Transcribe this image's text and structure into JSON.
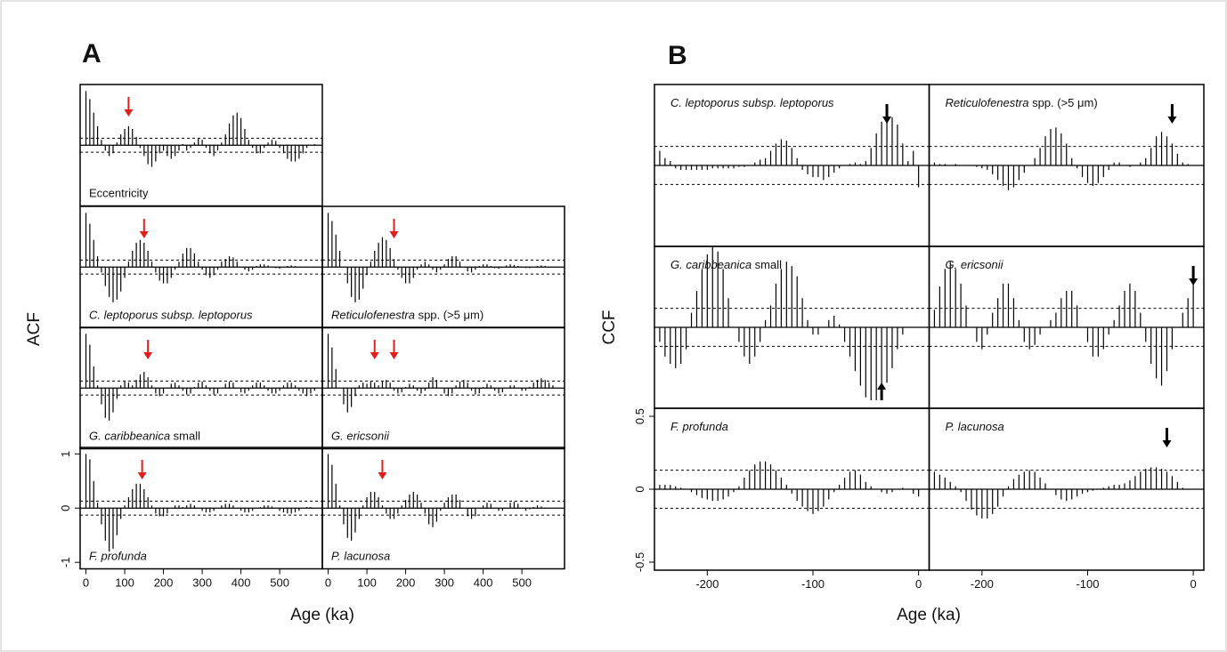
{
  "chart_data": [
    {
      "type": "acf",
      "panel_letter": "A",
      "ylabel": "ACF",
      "xlabel": "Age (ka)",
      "x": [
        0,
        10,
        20,
        30,
        40,
        50,
        60,
        70,
        80,
        90,
        100,
        110,
        120,
        130,
        140,
        150,
        160,
        170,
        180,
        190,
        200,
        210,
        220,
        230,
        240,
        250,
        260,
        270,
        280,
        290,
        300,
        310,
        320,
        330,
        340,
        350,
        360,
        370,
        380,
        390,
        400,
        410,
        420,
        430,
        440,
        450,
        460,
        470,
        480,
        490,
        500,
        510,
        520,
        530,
        540,
        550,
        560,
        570,
        580,
        590
      ],
      "xlim": [
        -15,
        610
      ],
      "xticks": [
        0,
        100,
        200,
        300,
        400,
        500
      ],
      "ylim": [
        -1.12,
        1.12
      ],
      "yticks": [
        -1,
        0,
        1
      ],
      "confidence_band": [
        -0.13,
        0.13
      ],
      "arrow_color": "#e0201b",
      "panels": [
        {
          "label": [
            {
              "text": "Eccentricity",
              "italic": false
            }
          ],
          "arrows": [
            110
          ],
          "values": [
            1,
            0.85,
            0.6,
            0.35,
            0.1,
            -0.1,
            -0.2,
            -0.15,
            0.05,
            0.2,
            0.3,
            0.35,
            0.3,
            0.15,
            -0.05,
            -0.2,
            -0.35,
            -0.4,
            -0.3,
            -0.15,
            -0.1,
            -0.2,
            -0.25,
            -0.2,
            -0.1,
            0.02,
            -0.1,
            -0.05,
            0.05,
            0.12,
            0.1,
            -0.05,
            -0.15,
            -0.2,
            -0.1,
            0.05,
            0.2,
            0.4,
            0.55,
            0.6,
            0.5,
            0.3,
            0.1,
            -0.05,
            -0.15,
            -0.15,
            -0.05,
            0.05,
            0.1,
            0.08,
            -0.05,
            -0.15,
            -0.25,
            -0.3,
            -0.3,
            -0.25,
            -0.15,
            -0.05,
            0,
            0.02
          ]
        },
        {
          "label": [
            {
              "text": "C. leptoporus subsp. leptoporus",
              "italic": true
            }
          ],
          "arrows": [
            150
          ],
          "values": [
            1,
            0.8,
            0.5,
            0.2,
            -0.1,
            -0.35,
            -0.55,
            -0.65,
            -0.6,
            -0.45,
            -0.2,
            0.1,
            0.3,
            0.45,
            0.5,
            0.45,
            0.3,
            0.1,
            -0.1,
            -0.25,
            -0.3,
            -0.3,
            -0.2,
            -0.05,
            0.1,
            0.25,
            0.35,
            0.35,
            0.25,
            0.1,
            -0.05,
            -0.15,
            -0.2,
            -0.15,
            -0.05,
            0.1,
            0.15,
            0.2,
            0.18,
            0.1,
            0,
            -0.05,
            -0.08,
            -0.05,
            0.02,
            0.05,
            0.05,
            0.03,
            0,
            -0.02,
            -0.03,
            0,
            0.02,
            0.03,
            0.02,
            0,
            0,
            -0.01,
            0,
            0
          ]
        },
        {
          "label": [
            {
              "text": "Reticulofenestra",
              "italic": true
            },
            {
              "text": " spp. (>5 μm)",
              "italic": false
            }
          ],
          "arrows": [
            170
          ],
          "values": [
            1,
            0.85,
            0.6,
            0.3,
            0,
            -0.3,
            -0.55,
            -0.65,
            -0.6,
            -0.4,
            -0.15,
            0.1,
            0.3,
            0.45,
            0.55,
            0.5,
            0.35,
            0.15,
            -0.05,
            -0.2,
            -0.3,
            -0.3,
            -0.2,
            -0.05,
            0.05,
            0.1,
            0.05,
            -0.05,
            -0.1,
            -0.05,
            0.05,
            0.15,
            0.2,
            0.2,
            0.1,
            0,
            -0.08,
            -0.1,
            -0.05,
            0.02,
            0.05,
            0.05,
            0.02,
            -0.02,
            -0.03,
            0,
            0.03,
            0.05,
            0.04,
            0.02,
            0,
            -0.02,
            -0.02,
            0,
            0.02,
            0.03,
            0.02,
            0,
            -0.01,
            0
          ]
        },
        {
          "label": [
            {
              "text": "G. caribbeanica",
              "italic": true
            },
            {
              "text": " small",
              "italic": false
            }
          ],
          "arrows": [
            160
          ],
          "values": [
            1,
            0.8,
            0.4,
            0.05,
            -0.3,
            -0.55,
            -0.6,
            -0.45,
            -0.2,
            0.05,
            0.12,
            0.1,
            0.05,
            0.15,
            0.25,
            0.3,
            0.2,
            0.05,
            -0.1,
            -0.15,
            -0.1,
            0,
            0.08,
            0.1,
            0.05,
            -0.05,
            -0.12,
            -0.1,
            0.02,
            0.1,
            0.12,
            0.05,
            -0.05,
            -0.12,
            -0.1,
            0,
            0.08,
            0.12,
            0.1,
            0,
            -0.08,
            -0.1,
            -0.05,
            0.05,
            0.1,
            0.1,
            0.05,
            -0.05,
            -0.1,
            -0.1,
            -0.05,
            0.05,
            0.1,
            0.1,
            0.05,
            -0.05,
            -0.1,
            -0.15,
            -0.1,
            -0.05
          ]
        },
        {
          "label": [
            {
              "text": "G. ericsonii",
              "italic": true
            }
          ],
          "arrows": [
            120,
            170
          ],
          "values": [
            1,
            0.75,
            0.35,
            0,
            -0.3,
            -0.45,
            -0.35,
            -0.15,
            0.05,
            0.1,
            0.08,
            0.12,
            0.1,
            0.05,
            0.12,
            0.15,
            0.1,
            -0.05,
            -0.1,
            -0.08,
            0.02,
            0.08,
            0.05,
            -0.05,
            -0.1,
            -0.05,
            0.1,
            0.2,
            0.15,
            0,
            -0.1,
            -0.15,
            -0.1,
            0.05,
            0.12,
            0.15,
            0.1,
            -0.05,
            -0.12,
            -0.1,
            0.02,
            0.08,
            0.05,
            -0.05,
            -0.1,
            -0.08,
            0,
            0.05,
            0.05,
            0,
            -0.05,
            -0.05,
            0.02,
            0.1,
            0.15,
            0.18,
            0.15,
            0.1,
            0.05,
            0
          ]
        },
        {
          "label": [
            {
              "text": "F. profunda",
              "italic": true
            }
          ],
          "arrows": [
            145
          ],
          "values": [
            1,
            0.9,
            0.5,
            0.1,
            -0.3,
            -0.6,
            -0.8,
            -0.75,
            -0.5,
            -0.2,
            0.05,
            0.2,
            0.35,
            0.45,
            0.45,
            0.35,
            0.2,
            0.05,
            -0.1,
            -0.15,
            -0.15,
            -0.1,
            0,
            0.05,
            0.05,
            0.02,
            0.05,
            0.08,
            0.05,
            0,
            -0.05,
            -0.08,
            -0.08,
            -0.05,
            0,
            0.05,
            0.08,
            0.08,
            0.05,
            0,
            -0.05,
            -0.08,
            -0.08,
            -0.05,
            0,
            0.02,
            0.05,
            0.05,
            0.03,
            0,
            -0.05,
            -0.08,
            -0.1,
            -0.1,
            -0.08,
            -0.05,
            0,
            0.02,
            0.02,
            0
          ]
        },
        {
          "label": [
            {
              "text": "P. lacunosa",
              "italic": true
            }
          ],
          "arrows": [
            140
          ],
          "values": [
            1,
            0.8,
            0.45,
            0.05,
            -0.3,
            -0.55,
            -0.6,
            -0.45,
            -0.2,
            0.05,
            0.2,
            0.3,
            0.3,
            0.2,
            0.05,
            -0.1,
            -0.2,
            -0.2,
            -0.1,
            0.05,
            0.15,
            0.25,
            0.3,
            0.25,
            0.1,
            -0.1,
            -0.3,
            -0.35,
            -0.25,
            -0.05,
            0.1,
            0.2,
            0.25,
            0.25,
            0.15,
            0,
            -0.15,
            -0.2,
            -0.15,
            0,
            0.05,
            0.1,
            0.08,
            0,
            -0.05,
            -0.05,
            0,
            0.1,
            0.12,
            0.08,
            0,
            -0.05,
            -0.02,
            0.02,
            0.05,
            0.03,
            0,
            0,
            0,
            0
          ]
        }
      ]
    },
    {
      "type": "ccf",
      "panel_letter": "B",
      "ylabel": "CCF",
      "xlabel": "Age (ka)",
      "x": [
        -245,
        -240,
        -235,
        -230,
        -225,
        -220,
        -215,
        -210,
        -205,
        -200,
        -195,
        -190,
        -185,
        -180,
        -175,
        -170,
        -165,
        -160,
        -155,
        -150,
        -145,
        -140,
        -135,
        -130,
        -125,
        -120,
        -115,
        -110,
        -105,
        -100,
        -95,
        -90,
        -85,
        -80,
        -75,
        -70,
        -65,
        -60,
        -55,
        -50,
        -45,
        -40,
        -35,
        -30,
        -25,
        -20,
        -15,
        -10,
        -5,
        0
      ],
      "xlim": [
        -250,
        10
      ],
      "xticks": [
        -200,
        -100,
        0
      ],
      "ylim": [
        -0.555,
        0.555
      ],
      "yticks": [
        -0.5,
        0,
        0.5
      ],
      "confidence_band": [
        -0.13,
        0.13
      ],
      "arrow_color": "#000000",
      "panels": [
        {
          "label": [
            {
              "text": "C. leptoporus subsp. leptoporus",
              "italic": true
            }
          ],
          "arrows": [
            {
              "x": -30,
              "direction": "down"
            }
          ],
          "values": [
            0.1,
            0.05,
            0.03,
            -0.02,
            -0.03,
            -0.03,
            -0.03,
            -0.03,
            -0.03,
            -0.03,
            -0.02,
            -0.02,
            -0.02,
            -0.02,
            -0.02,
            -0.01,
            -0.01,
            0,
            0.02,
            0.04,
            0.05,
            0.1,
            0.15,
            0.18,
            0.17,
            0.12,
            0.05,
            -0.03,
            -0.06,
            -0.08,
            -0.08,
            -0.1,
            -0.08,
            -0.05,
            -0.02,
            0,
            0.01,
            0.02,
            0.01,
            0.03,
            0.12,
            0.22,
            0.3,
            0.33,
            0.33,
            0.28,
            0.15,
            0.03,
            0.1,
            -0.15
          ]
        },
        {
          "label": [
            {
              "text": "Reticulofenestra",
              "italic": true
            },
            {
              "text": " spp. (>5 μm)",
              "italic": false
            }
          ],
          "arrows": [
            {
              "x": -20,
              "direction": "down"
            }
          ],
          "values": [
            0.02,
            0.01,
            0.01,
            0,
            0.01,
            0,
            0,
            0,
            -0.01,
            -0.02,
            -0.03,
            -0.06,
            -0.1,
            -0.14,
            -0.17,
            -0.15,
            -0.1,
            -0.05,
            0,
            0.05,
            0.12,
            0.2,
            0.25,
            0.26,
            0.22,
            0.15,
            0.05,
            -0.02,
            -0.08,
            -0.12,
            -0.14,
            -0.12,
            -0.08,
            -0.03,
            0.02,
            0.02,
            0,
            -0.01,
            0,
            0.02,
            0.05,
            0.12,
            0.2,
            0.23,
            0.2,
            0.15,
            0.08,
            0.02,
            0.01,
            0
          ]
        },
        {
          "label": [
            {
              "text": "G. caribbeanica",
              "italic": true
            },
            {
              "text": " small",
              "italic": false
            }
          ],
          "arrows": [
            {
              "x": -35,
              "direction": "up"
            }
          ],
          "values": [
            -0.1,
            -0.2,
            -0.25,
            -0.28,
            -0.25,
            -0.15,
            0.1,
            0.25,
            0.4,
            0.5,
            0.55,
            0.52,
            0.4,
            0.2,
            0,
            -0.1,
            -0.2,
            -0.25,
            -0.2,
            -0.1,
            0.05,
            0.15,
            0.3,
            0.4,
            0.45,
            0.42,
            0.35,
            0.2,
            0.05,
            -0.05,
            -0.05,
            0,
            0.05,
            0.08,
            0.02,
            -0.1,
            -0.2,
            -0.3,
            -0.4,
            -0.48,
            -0.5,
            -0.5,
            -0.45,
            -0.38,
            -0.28,
            -0.15,
            -0.05,
            0,
            0,
            0
          ]
        },
        {
          "label": [
            {
              "text": "G. ericsonii",
              "italic": true
            }
          ],
          "arrows": [
            {
              "x": 0,
              "direction": "down"
            }
          ],
          "values": [
            0.12,
            0.28,
            0.4,
            0.45,
            0.4,
            0.3,
            0.15,
            0,
            -0.1,
            -0.15,
            -0.05,
            0.1,
            0.2,
            0.3,
            0.3,
            0.2,
            0.05,
            -0.1,
            -0.15,
            -0.12,
            -0.05,
            0,
            0.05,
            0.1,
            0.2,
            0.25,
            0.25,
            0.15,
            0,
            -0.1,
            -0.2,
            -0.2,
            -0.15,
            -0.05,
            0.05,
            0.15,
            0.25,
            0.3,
            0.25,
            0.1,
            -0.1,
            -0.25,
            -0.35,
            -0.4,
            -0.3,
            -0.15,
            0,
            0.1,
            0.2,
            0.35
          ]
        },
        {
          "label": [
            {
              "text": "F. profunda",
              "italic": true
            }
          ],
          "arrows": [],
          "values": [
            0.03,
            0.03,
            0.03,
            0.02,
            0.01,
            0,
            -0.02,
            -0.04,
            -0.06,
            -0.07,
            -0.08,
            -0.08,
            -0.07,
            -0.05,
            -0.02,
            0.02,
            0.08,
            0.13,
            0.17,
            0.19,
            0.19,
            0.17,
            0.13,
            0.08,
            0.03,
            -0.03,
            -0.08,
            -0.12,
            -0.15,
            -0.17,
            -0.15,
            -0.12,
            -0.07,
            -0.02,
            0.03,
            0.08,
            0.12,
            0.13,
            0.1,
            0.05,
            0.02,
            0,
            -0.02,
            -0.03,
            -0.02,
            0,
            0.01,
            0,
            -0.03,
            -0.05
          ]
        },
        {
          "label": [
            {
              "text": "P. lacunosa",
              "italic": true
            }
          ],
          "arrows": [
            {
              "x": -25,
              "direction": "down"
            }
          ],
          "values": [
            0.12,
            0.1,
            0.08,
            0.05,
            0.02,
            -0.02,
            -0.08,
            -0.14,
            -0.18,
            -0.2,
            -0.2,
            -0.17,
            -0.12,
            -0.05,
            0.02,
            0.07,
            0.1,
            0.12,
            0.13,
            0.12,
            0.08,
            0.04,
            0,
            -0.04,
            -0.07,
            -0.08,
            -0.07,
            -0.05,
            -0.03,
            -0.02,
            -0.01,
            0,
            0.01,
            0.02,
            0.03,
            0.03,
            0.04,
            0.06,
            0.09,
            0.12,
            0.14,
            0.15,
            0.15,
            0.14,
            0.12,
            0.09,
            0.05,
            0.01,
            0,
            0
          ]
        }
      ]
    }
  ]
}
